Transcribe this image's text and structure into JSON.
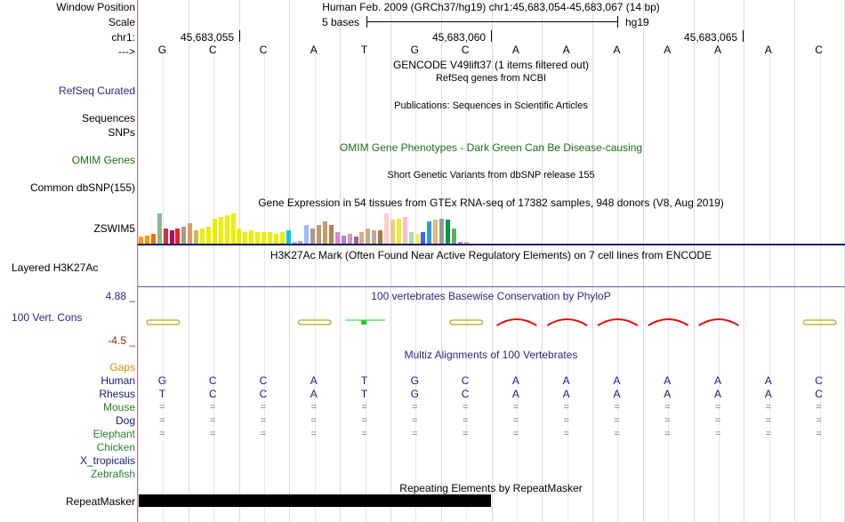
{
  "labels": {
    "window_position": "Window Position",
    "scale": "Scale",
    "chrom": "chr1:",
    "strand_arrow": "--->",
    "refseq": "RefSeq Curated",
    "sequences": "Sequences",
    "snps": "SNPs",
    "omim": "OMIM Genes",
    "dbsnp": "Common dbSNP(155)",
    "gtex_gene": "ZSWIM5",
    "h3k27ac": "Layered H3K27Ac",
    "cons_max": "4.88 _",
    "cons": "100 Vert. Cons",
    "cons_min": "-4.5 _",
    "gaps": "Gaps"
  },
  "header": {
    "position_text": "Human Feb. 2009 (GRCh37/hg19)   chr1:45,683,054-45,683,067 (14 bp)",
    "scale_text": "5 bases",
    "scale_db": "hg19",
    "coords": [
      "45,683,055",
      "45,683,060",
      "45,683,065"
    ]
  },
  "bases": [
    "G",
    "C",
    "C",
    "A",
    "T",
    "G",
    "C",
    "A",
    "A",
    "A",
    "A",
    "A",
    "A",
    "C"
  ],
  "tracks": {
    "gencode_title": "GENCODE V49lift37 (1 items filtered out)",
    "refseq_title": "RefSeq genes from NCBI",
    "publications_title": "Publications: Sequences in Scientific Articles",
    "omim_title": "OMIM Gene Phenotypes - Dark Green Can Be Disease-causing",
    "dbsnp_title": "Short Genetic Variants from dbSNP release 155",
    "gtex_title": "Gene Expression in 54 tissues from GTEx RNA-seq of 17382 samples, 948 donors (V8, Aug 2019)",
    "h3k27ac_title": "H3K27Ac Mark (Often Found Near Active Regulatory Elements) on 7 cell lines from ENCODE",
    "phylop_title": "100 vertebrates Basewise Conservation by PhyloP",
    "multiz_title": "Multiz Alignments of 100 Vertebrates",
    "rmsk_title": "Repeating Elements by RepeatMasker",
    "rmsk_label": "RepeatMasker"
  },
  "species": [
    {
      "name": "Human",
      "row": [
        "G",
        "C",
        "C",
        "A",
        "T",
        "G",
        "C",
        "A",
        "A",
        "A",
        "A",
        "A",
        "A",
        "C"
      ],
      "color": "#1a1a7a"
    },
    {
      "name": "Rhesus",
      "row": [
        "T",
        "C",
        "C",
        "A",
        "T",
        "G",
        "C",
        "A",
        "A",
        "A",
        "A",
        "A",
        "A",
        "C"
      ],
      "color": "#1a1a7a"
    },
    {
      "name": "Mouse",
      "row": [
        "=",
        "=",
        "=",
        "=",
        "=",
        "=",
        "=",
        "=",
        "=",
        "=",
        "=",
        "=",
        "=",
        "="
      ],
      "color": "#2e7d2e"
    },
    {
      "name": "Dog",
      "row": [
        "=",
        "=",
        "=",
        "=",
        "=",
        "=",
        "=",
        "=",
        "=",
        "=",
        "=",
        "=",
        "=",
        "="
      ],
      "color": "#1a1a7a"
    },
    {
      "name": "Elephant",
      "row": [
        "=",
        "=",
        "=",
        "=",
        "=",
        "=",
        "=",
        "=",
        "=",
        "=",
        "=",
        "=",
        "=",
        "="
      ],
      "color": "#2e7d2e"
    },
    {
      "name": "Chicken",
      "row": [],
      "color": "#2e7d2e"
    },
    {
      "name": "X_tropicalis",
      "row": [],
      "color": "#1a1a7a"
    },
    {
      "name": "Zebrafish",
      "row": [],
      "color": "#2e7d2e"
    }
  ],
  "gtex_tissue_colors": [
    "#ff9900",
    "#ff9900",
    "#ff6600",
    "#88bb88",
    "#cc3333",
    "#bb0066",
    "#ee2222",
    "#aa9988",
    "#dd9966",
    "#ccbb44",
    "#eeee00",
    "#eeee00",
    "#eeee00",
    "#eeee00",
    "#eeee00",
    "#eeee00",
    "#eeee00",
    "#eeee00",
    "#eeee00",
    "#eeee00",
    "#eeee00",
    "#eeee00",
    "#eeee00",
    "#eeee00",
    "#00ccdd",
    "#99aaee",
    "#aaaaaa",
    "#99bbff",
    "#aa9988",
    "#bb9977",
    "#cc9966",
    "#aa8855",
    "#dd88cc",
    "#bb77dd",
    "#cc99bb",
    "#996699",
    "#ddaa88",
    "#ccaa88",
    "#bbaa99",
    "#aa7744",
    "#ffcccc",
    "#eecc88",
    "#eeee22",
    "#ffbbcc",
    "#aaddaa",
    "#ffee55",
    "#3366ff",
    "#3399dd",
    "#ddbb77",
    "#999999",
    "#009944",
    "#66aa66",
    "#cc77ee",
    "#ff99cc"
  ],
  "gtex_values": [
    8,
    10,
    12,
    36,
    18,
    16,
    18,
    20,
    24,
    16,
    18,
    20,
    30,
    32,
    34,
    36,
    18,
    14,
    16,
    14,
    14,
    14,
    12,
    14,
    16,
    2,
    3,
    22,
    18,
    22,
    26,
    22,
    14,
    10,
    12,
    8,
    14,
    18,
    16,
    16,
    36,
    28,
    30,
    32,
    14,
    12,
    14,
    26,
    28,
    30,
    28,
    18,
    2,
    2
  ],
  "phylop_marks": [
    "low",
    "none",
    "none",
    "low",
    "green",
    "none",
    "low",
    "red",
    "red",
    "red",
    "red",
    "red",
    "none",
    "low"
  ]
}
